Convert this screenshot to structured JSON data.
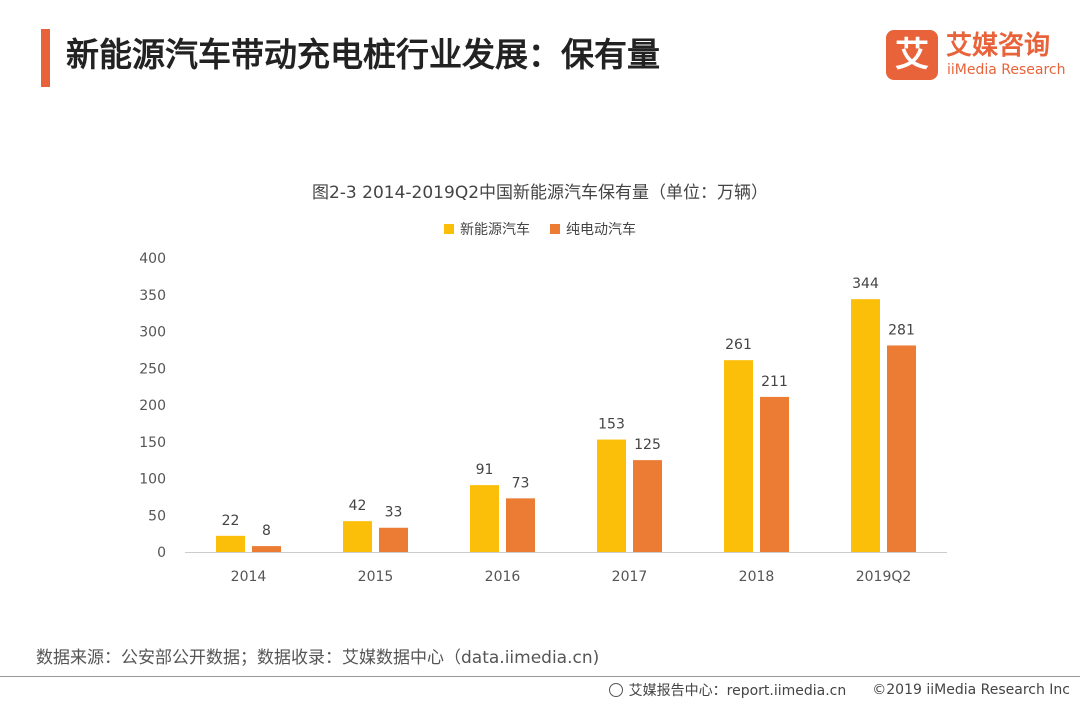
{
  "header": {
    "title": "新能源汽车带动充电桩行业发展：保有量",
    "brand_mark": "艾",
    "brand_name": "艾媒咨询",
    "brand_sub": "iiMedia Research"
  },
  "colors": {
    "accent": "#e8633a",
    "series_1": "#fbbf0a",
    "series_2": "#ec7c34"
  },
  "chart_data": {
    "type": "bar",
    "title": "图2-3 2014-2019Q2中国新能源汽车保有量（单位：万辆）",
    "categories": [
      "2014",
      "2015",
      "2016",
      "2017",
      "2018",
      "2019Q2"
    ],
    "series": [
      {
        "name": "新能源汽车",
        "values": [
          22,
          42,
          91,
          153,
          261,
          344
        ]
      },
      {
        "name": "纯电动汽车",
        "values": [
          8,
          33,
          73,
          125,
          211,
          281
        ]
      }
    ],
    "ylim": [
      0,
      400
    ],
    "yticks": [
      0,
      50,
      100,
      150,
      200,
      250,
      300,
      350,
      400
    ],
    "xlabel": "",
    "ylabel": "",
    "legend": "top-center",
    "grid": false
  },
  "footer": {
    "source": "数据来源：公安部公开数据；数据收录：艾媒数据中心（data.iimedia.cn)",
    "report": "艾媒报告中心：report.iimedia.cn",
    "copyright": "©2019  iiMedia Research  Inc"
  }
}
